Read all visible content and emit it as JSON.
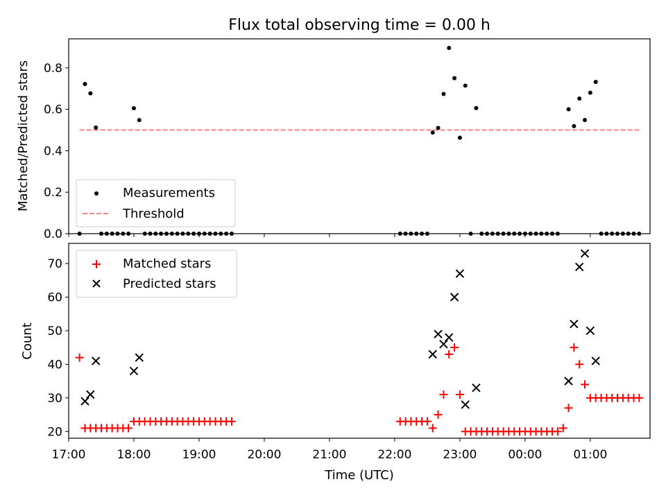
{
  "figure": {
    "title": "Flux total observing time = 0.00 h"
  },
  "chart_data": [
    {
      "type": "scatter",
      "panel": "top",
      "ylabel": "Matched/Predicted stars",
      "xlim": [
        "17:00",
        "01:55"
      ],
      "ylim": [
        0,
        0.94
      ],
      "yticks": [
        "0.0",
        "0.2",
        "0.4",
        "0.6",
        "0.8"
      ],
      "legend_position": "lower-left",
      "series": [
        {
          "name": "Measurements",
          "marker": "dot",
          "color": "#000000",
          "points": [
            [
              "17:10",
              0.0
            ],
            [
              "17:15",
              0.722
            ],
            [
              "17:20",
              0.677
            ],
            [
              "17:25",
              0.512
            ],
            [
              "17:30",
              0.0
            ],
            [
              "17:35",
              0.0
            ],
            [
              "17:40",
              0.0
            ],
            [
              "17:45",
              0.0
            ],
            [
              "17:50",
              0.0
            ],
            [
              "17:55",
              0.0
            ],
            [
              "18:00",
              0.605
            ],
            [
              "18:05",
              0.548
            ],
            [
              "18:10",
              0.0
            ],
            [
              "18:15",
              0.0
            ],
            [
              "18:20",
              0.0
            ],
            [
              "18:25",
              0.0
            ],
            [
              "18:30",
              0.0
            ],
            [
              "18:35",
              0.0
            ],
            [
              "18:40",
              0.0
            ],
            [
              "18:45",
              0.0
            ],
            [
              "18:50",
              0.0
            ],
            [
              "18:55",
              0.0
            ],
            [
              "19:00",
              0.0
            ],
            [
              "19:05",
              0.0
            ],
            [
              "19:10",
              0.0
            ],
            [
              "19:15",
              0.0
            ],
            [
              "19:20",
              0.0
            ],
            [
              "19:25",
              0.0
            ],
            [
              "19:30",
              0.0
            ],
            [
              "22:05",
              0.0
            ],
            [
              "22:10",
              0.0
            ],
            [
              "22:15",
              0.0
            ],
            [
              "22:20",
              0.0
            ],
            [
              "22:25",
              0.0
            ],
            [
              "22:30",
              0.0
            ],
            [
              "22:35",
              0.488
            ],
            [
              "22:40",
              0.51
            ],
            [
              "22:45",
              0.674
            ],
            [
              "22:50",
              0.896
            ],
            [
              "22:55",
              0.75
            ],
            [
              "23:00",
              0.463
            ],
            [
              "23:05",
              0.714
            ],
            [
              "23:10",
              0.0
            ],
            [
              "23:15",
              0.606
            ],
            [
              "23:20",
              0.0
            ],
            [
              "23:25",
              0.0
            ],
            [
              "23:30",
              0.0
            ],
            [
              "23:35",
              0.0
            ],
            [
              "23:40",
              0.0
            ],
            [
              "23:45",
              0.0
            ],
            [
              "23:50",
              0.0
            ],
            [
              "23:55",
              0.0
            ],
            [
              "00:00",
              0.0
            ],
            [
              "00:05",
              0.0
            ],
            [
              "00:10",
              0.0
            ],
            [
              "00:15",
              0.0
            ],
            [
              "00:20",
              0.0
            ],
            [
              "00:25",
              0.0
            ],
            [
              "00:30",
              0.0
            ],
            [
              "00:40",
              0.6
            ],
            [
              "00:45",
              0.519
            ],
            [
              "00:50",
              0.652
            ],
            [
              "00:55",
              0.548
            ],
            [
              "01:00",
              0.68
            ],
            [
              "01:05",
              0.732
            ],
            [
              "01:10",
              0.0
            ],
            [
              "01:15",
              0.0
            ],
            [
              "01:20",
              0.0
            ],
            [
              "01:25",
              0.0
            ],
            [
              "01:30",
              0.0
            ],
            [
              "01:35",
              0.0
            ],
            [
              "01:40",
              0.0
            ],
            [
              "01:45",
              0.0
            ]
          ]
        },
        {
          "name": "Threshold",
          "marker": "dashed-line",
          "color": "#ff7f7f",
          "points": [
            [
              "17:10",
              0.5
            ],
            [
              "01:45",
              0.5
            ]
          ]
        }
      ]
    },
    {
      "type": "scatter",
      "panel": "bottom",
      "xlabel": "Time (UTC)",
      "ylabel": "Count",
      "xlim": [
        "17:00",
        "01:55"
      ],
      "ylim": [
        18,
        76
      ],
      "yticks": [
        "20",
        "30",
        "40",
        "50",
        "60",
        "70"
      ],
      "xticks": [
        "17:00",
        "18:00",
        "19:00",
        "20:00",
        "21:00",
        "22:00",
        "23:00",
        "00:00",
        "01:00"
      ],
      "legend_position": "top-left",
      "series": [
        {
          "name": "Matched stars",
          "marker": "plus",
          "color": "#ff0000",
          "points": [
            [
              "17:10",
              42
            ],
            [
              "17:15",
              21
            ],
            [
              "17:20",
              21
            ],
            [
              "17:25",
              21
            ],
            [
              "17:30",
              21
            ],
            [
              "17:35",
              21
            ],
            [
              "17:40",
              21
            ],
            [
              "17:45",
              21
            ],
            [
              "17:50",
              21
            ],
            [
              "17:55",
              21
            ],
            [
              "18:00",
              23
            ],
            [
              "18:05",
              23
            ],
            [
              "18:10",
              23
            ],
            [
              "18:15",
              23
            ],
            [
              "18:20",
              23
            ],
            [
              "18:25",
              23
            ],
            [
              "18:30",
              23
            ],
            [
              "18:35",
              23
            ],
            [
              "18:40",
              23
            ],
            [
              "18:45",
              23
            ],
            [
              "18:50",
              23
            ],
            [
              "18:55",
              23
            ],
            [
              "19:00",
              23
            ],
            [
              "19:05",
              23
            ],
            [
              "19:10",
              23
            ],
            [
              "19:15",
              23
            ],
            [
              "19:20",
              23
            ],
            [
              "19:25",
              23
            ],
            [
              "19:30",
              23
            ],
            [
              "22:05",
              23
            ],
            [
              "22:10",
              23
            ],
            [
              "22:15",
              23
            ],
            [
              "22:20",
              23
            ],
            [
              "22:25",
              23
            ],
            [
              "22:30",
              23
            ],
            [
              "22:35",
              21
            ],
            [
              "22:40",
              25
            ],
            [
              "22:45",
              31
            ],
            [
              "22:50",
              43
            ],
            [
              "22:55",
              45
            ],
            [
              "23:00",
              31
            ],
            [
              "23:05",
              20
            ],
            [
              "23:10",
              20
            ],
            [
              "23:15",
              20
            ],
            [
              "23:20",
              20
            ],
            [
              "23:25",
              20
            ],
            [
              "23:30",
              20
            ],
            [
              "23:35",
              20
            ],
            [
              "23:40",
              20
            ],
            [
              "23:45",
              20
            ],
            [
              "23:50",
              20
            ],
            [
              "23:55",
              20
            ],
            [
              "00:00",
              20
            ],
            [
              "00:05",
              20
            ],
            [
              "00:10",
              20
            ],
            [
              "00:15",
              20
            ],
            [
              "00:20",
              20
            ],
            [
              "00:25",
              20
            ],
            [
              "00:30",
              20
            ],
            [
              "00:35",
              21
            ],
            [
              "00:40",
              27
            ],
            [
              "00:45",
              45
            ],
            [
              "00:50",
              40
            ],
            [
              "00:55",
              34
            ],
            [
              "01:00",
              30
            ],
            [
              "01:05",
              30
            ],
            [
              "01:10",
              30
            ],
            [
              "01:15",
              30
            ],
            [
              "01:20",
              30
            ],
            [
              "01:25",
              30
            ],
            [
              "01:30",
              30
            ],
            [
              "01:35",
              30
            ],
            [
              "01:40",
              30
            ],
            [
              "01:45",
              30
            ]
          ]
        },
        {
          "name": "Predicted stars",
          "marker": "x",
          "color": "#000000",
          "points": [
            [
              "17:15",
              29
            ],
            [
              "17:20",
              31
            ],
            [
              "17:25",
              41
            ],
            [
              "18:00",
              38
            ],
            [
              "18:05",
              42
            ],
            [
              "22:35",
              43
            ],
            [
              "22:40",
              49
            ],
            [
              "22:45",
              46
            ],
            [
              "22:50",
              48
            ],
            [
              "22:55",
              60
            ],
            [
              "23:00",
              67
            ],
            [
              "23:05",
              28
            ],
            [
              "23:15",
              33
            ],
            [
              "00:40",
              35
            ],
            [
              "00:45",
              52
            ],
            [
              "00:50",
              69
            ],
            [
              "00:55",
              73
            ],
            [
              "01:00",
              50
            ],
            [
              "01:05",
              41
            ]
          ]
        }
      ]
    }
  ]
}
